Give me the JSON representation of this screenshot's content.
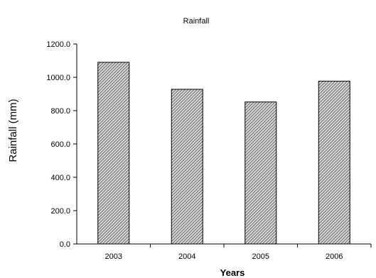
{
  "chart_data": {
    "type": "bar",
    "title": "Rainfall",
    "xlabel": "Years",
    "ylabel": "Rainfall (mm)",
    "categories": [
      "2003",
      "2004",
      "2005",
      "2006"
    ],
    "values": [
      1090,
      928,
      852,
      977
    ],
    "ylim": [
      0,
      1200
    ],
    "yticks": [
      "0.0",
      "200.0",
      "400.0",
      "600.0",
      "800.0",
      "1000.0",
      "1200.0"
    ],
    "grid": false,
    "legend": "none",
    "bar_fill": "diagonal-hatch",
    "bar_color": "#555555"
  }
}
